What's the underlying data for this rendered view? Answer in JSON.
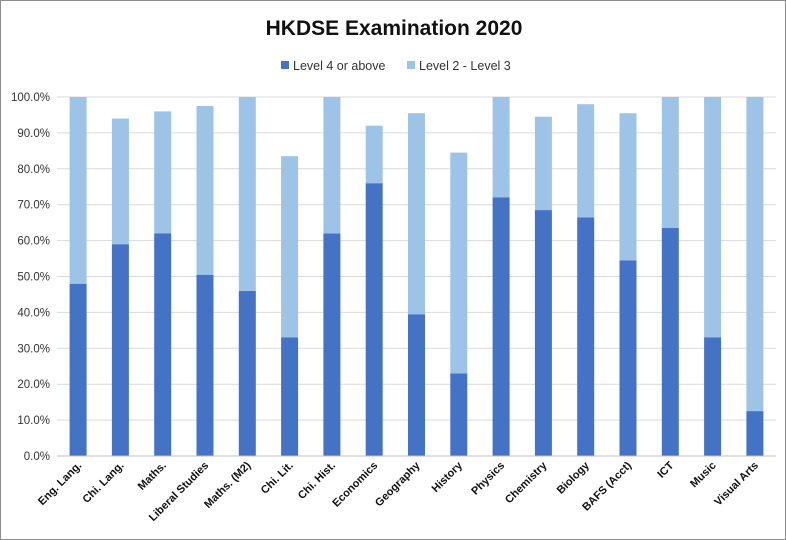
{
  "chart_data": {
    "type": "bar",
    "stacked": true,
    "title": "HKDSE Examination 2020",
    "xlabel": "",
    "ylabel": "",
    "ylim": [
      0,
      100
    ],
    "ytick_format": "percent_1dp",
    "yticks": [
      "0.0%",
      "10.0%",
      "20.0%",
      "30.0%",
      "40.0%",
      "50.0%",
      "60.0%",
      "70.0%",
      "80.0%",
      "90.0%",
      "100.0%"
    ],
    "grid": true,
    "legend": "top",
    "categories": [
      "Eng. Lang.",
      "Chi. Lang.",
      "Maths.",
      "Liberal Studies",
      "Maths. (M2)",
      "Chi. Lit.",
      "Chi. Hist.",
      "Economics",
      "Geography",
      "History",
      "Physics",
      "Chemistry",
      "Biology",
      "BAFS (Acct)",
      "ICT",
      "Music",
      "Visual Arts"
    ],
    "series": [
      {
        "name": "Level 4 or above",
        "color": "#4472c4",
        "values": [
          48,
          59,
          62,
          50.5,
          46,
          33,
          62,
          76,
          39.5,
          23,
          72,
          68.5,
          66.5,
          54.5,
          63.5,
          33,
          12.5
        ]
      },
      {
        "name": "Level 2 - Level 3",
        "color": "#9dc3e6",
        "values": [
          52,
          35,
          34,
          47,
          54,
          50.5,
          38,
          16,
          56,
          61.5,
          28,
          26,
          31.5,
          41,
          36.5,
          67,
          87.5
        ]
      }
    ]
  }
}
